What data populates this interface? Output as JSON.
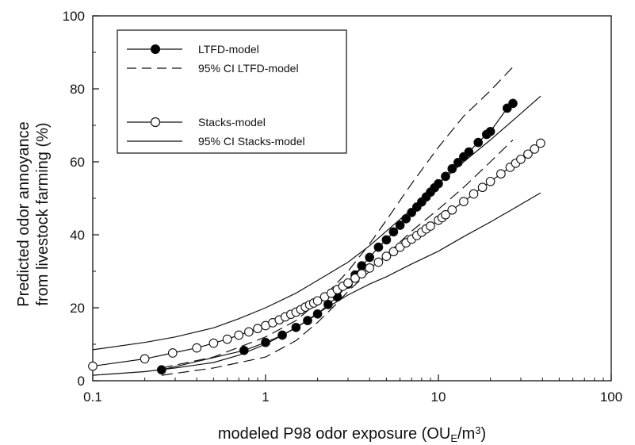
{
  "chart_data": {
    "type": "scatter",
    "x_scale": "log",
    "xlim": [
      0.1,
      100
    ],
    "ylim": [
      0,
      100
    ],
    "x_ticks": [
      0.1,
      1,
      10,
      100
    ],
    "x_tick_labels": [
      "0.1",
      "1",
      "10",
      "100"
    ],
    "y_ticks": [
      0,
      20,
      40,
      60,
      80,
      100
    ],
    "y_tick_labels": [
      "0",
      "20",
      "40",
      "60",
      "80",
      "100"
    ],
    "xlabel": {
      "main": "modeled P98 odor exposure (OU",
      "sub": "E",
      "mid": "/m",
      "sup": "3",
      "end": ")"
    },
    "ylabel_lines": [
      "Predicted odor annoyance",
      "from livestock farming (%)"
    ],
    "grid": false,
    "legend_position": "top-left",
    "legend": [
      {
        "label": "LTFD-model",
        "style": "line-filled-marker"
      },
      {
        "label": "95% CI LTFD-model",
        "style": "dashed"
      },
      {
        "label": "Stacks-model",
        "style": "line-open-marker"
      },
      {
        "label": "95% CI Stacks-model",
        "style": "solid"
      }
    ],
    "series": [
      {
        "name": "LTFD-model",
        "marker": "filled",
        "x": [
          0.25,
          0.75,
          1.0,
          1.25,
          1.5,
          1.75,
          2.0,
          2.3,
          2.6,
          3.0,
          3.3,
          3.6,
          4.0,
          4.5,
          5.0,
          5.5,
          6.0,
          6.5,
          7.0,
          7.5,
          8.0,
          8.5,
          9.0,
          9.5,
          10.0,
          11.0,
          12.0,
          13.0,
          14.0,
          15.0,
          17.0,
          19.0,
          20.0,
          25.0,
          27.0
        ],
        "y": [
          3.0,
          8.3,
          10.5,
          12.5,
          14.6,
          16.5,
          18.3,
          20.9,
          23.0,
          26.5,
          29.0,
          31.5,
          33.8,
          36.6,
          38.6,
          40.8,
          42.6,
          44.4,
          46.1,
          47.6,
          49.0,
          50.4,
          51.7,
          52.9,
          54.0,
          56.0,
          58.1,
          59.8,
          61.4,
          62.7,
          65.3,
          67.5,
          68.3,
          74.7,
          76.0
        ]
      },
      {
        "name": "LTFD-model 95% CI upper",
        "line": "dashed",
        "x": [
          0.25,
          0.5,
          1.0,
          1.5,
          2.0,
          2.5,
          3.0,
          4.0,
          5.0,
          7.0,
          10.0,
          14.0,
          20.0,
          27.0
        ],
        "y": [
          3.5,
          6.5,
          12.0,
          16.5,
          21.5,
          26.0,
          30.0,
          37.5,
          44.0,
          54.0,
          64.0,
          72.5,
          79.5,
          86.0
        ]
      },
      {
        "name": "LTFD-model 95% CI lower",
        "line": "dashed",
        "x": [
          0.25,
          0.5,
          1.0,
          1.5,
          2.0,
          2.5,
          3.0,
          4.0,
          5.0,
          7.0,
          10.0,
          14.0,
          20.0,
          27.0
        ],
        "y": [
          1.5,
          3.5,
          6.5,
          11.0,
          16.0,
          20.5,
          24.5,
          30.0,
          34.5,
          41.0,
          47.0,
          53.0,
          60.0,
          66.0
        ]
      },
      {
        "name": "Stacks-model",
        "marker": "open",
        "x": [
          0.1,
          0.2,
          0.29,
          0.4,
          0.5,
          0.6,
          0.7,
          0.8,
          0.9,
          1.0,
          1.1,
          1.2,
          1.3,
          1.4,
          1.5,
          1.6,
          1.7,
          1.8,
          1.9,
          2.0,
          2.2,
          2.4,
          2.6,
          2.8,
          3.0,
          3.3,
          3.6,
          4.0,
          4.5,
          5.0,
          5.5,
          6.0,
          6.5,
          7.0,
          7.5,
          8.0,
          8.5,
          9.0,
          10.0,
          10.5,
          11.0,
          12.0,
          14.0,
          16.0,
          18.0,
          20.0,
          23.0,
          26.0,
          28.0,
          30.0,
          33.0,
          36.0,
          39.0
        ],
        "y": [
          4.0,
          6.0,
          7.6,
          9.0,
          10.3,
          11.4,
          12.5,
          13.4,
          14.3,
          15.1,
          15.9,
          16.7,
          17.5,
          18.2,
          18.8,
          19.5,
          20.2,
          20.8,
          21.3,
          21.9,
          23.0,
          24.0,
          25.0,
          25.9,
          26.8,
          28.1,
          29.3,
          30.9,
          32.5,
          34.1,
          35.4,
          36.6,
          37.8,
          38.8,
          39.8,
          40.7,
          41.6,
          42.4,
          44.0,
          44.7,
          45.5,
          46.8,
          49.1,
          51.2,
          53.0,
          54.6,
          56.7,
          58.5,
          59.6,
          60.7,
          62.1,
          63.5,
          65.1
        ]
      },
      {
        "name": "Stacks-model 95% CI upper",
        "line": "solid",
        "x": [
          0.1,
          0.2,
          0.3,
          0.5,
          0.7,
          1.0,
          1.5,
          2.0,
          3.0,
          4.0,
          5.0,
          7.0,
          10.0,
          14.0,
          20.0,
          28.0,
          39.0
        ],
        "y": [
          8.5,
          10.5,
          12.0,
          14.5,
          17.0,
          20.0,
          24.0,
          27.5,
          32.5,
          37.0,
          41.0,
          47.0,
          54.0,
          60.0,
          66.0,
          72.0,
          78.0
        ]
      },
      {
        "name": "Stacks-model 95% CI lower",
        "line": "solid",
        "x": [
          0.1,
          0.2,
          0.3,
          0.5,
          0.7,
          1.0,
          1.5,
          2.0,
          3.0,
          4.0,
          5.0,
          7.0,
          10.0,
          14.0,
          20.0,
          28.0,
          39.0
        ],
        "y": [
          1.5,
          2.5,
          3.5,
          5.0,
          7.0,
          10.0,
          14.5,
          18.5,
          23.5,
          26.5,
          28.5,
          32.0,
          35.5,
          39.5,
          43.5,
          47.5,
          51.5
        ]
      }
    ]
  }
}
